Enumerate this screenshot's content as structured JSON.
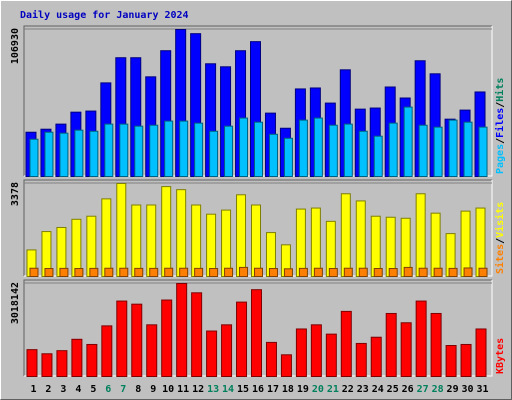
{
  "title": "Daily usage for January 2024",
  "title_color": "#0000c0",
  "categories": [
    1,
    2,
    3,
    4,
    5,
    6,
    7,
    8,
    9,
    10,
    11,
    12,
    13,
    14,
    15,
    16,
    17,
    18,
    19,
    20,
    21,
    22,
    23,
    24,
    25,
    26,
    27,
    28,
    29,
    30,
    31
  ],
  "category_colors": [
    "#000000",
    "#000000",
    "#000000",
    "#000000",
    "#000000",
    "#00805c",
    "#00805c",
    "#000000",
    "#000000",
    "#000000",
    "#000000",
    "#000000",
    "#00805c",
    "#00805c",
    "#000000",
    "#000000",
    "#000000",
    "#000000",
    "#000000",
    "#00805c",
    "#00805c",
    "#000000",
    "#000000",
    "#000000",
    "#000000",
    "#000000",
    "#00805c",
    "#00805c",
    "#000000",
    "#000000",
    "#000000"
  ],
  "chart_data": [
    {
      "type": "bar",
      "ylim": [
        0,
        106930
      ],
      "yticks": [
        106930
      ],
      "legend_separator": "/",
      "series": [
        {
          "name": "Pages",
          "color": "#00c0ff",
          "values": [
            27100,
            32200,
            31500,
            33700,
            32900,
            38100,
            38100,
            36600,
            37300,
            40300,
            40300,
            38800,
            32900,
            36600,
            42500,
            39500,
            30700,
            27800,
            41000,
            42500,
            37300,
            38100,
            32900,
            29300,
            38800,
            50500,
            37300,
            35900,
            41000,
            39500,
            35900
          ]
        },
        {
          "name": "Files",
          "color": "#0000ff",
          "values": [
            32200,
            34400,
            38100,
            46800,
            47600,
            68100,
            86400,
            86400,
            72500,
            91500,
            106930,
            103900,
            82000,
            79800,
            91500,
            98100,
            46100,
            35100,
            63700,
            64400,
            53400,
            77600,
            49000,
            49800,
            65100,
            57100,
            84200,
            74700,
            41700,
            48300,
            61500
          ]
        },
        {
          "name": "Hits",
          "color": "#00805c",
          "values": [
            null,
            null,
            null,
            null,
            null,
            null,
            null,
            null,
            null,
            null,
            null,
            null,
            null,
            null,
            null,
            null,
            null,
            null,
            null,
            null,
            null,
            null,
            null,
            null,
            null,
            null,
            null,
            null,
            null,
            null,
            null
          ]
        }
      ]
    },
    {
      "type": "bar",
      "ylim": [
        0,
        3378
      ],
      "yticks": [
        3378
      ],
      "legend_separator": "/",
      "series": [
        {
          "name": "Sites",
          "color": "#ff8000",
          "values": [
            300,
            290,
            295,
            290,
            295,
            300,
            300,
            295,
            295,
            300,
            300,
            295,
            290,
            300,
            330,
            300,
            290,
            280,
            295,
            300,
            290,
            300,
            300,
            290,
            290,
            330,
            300,
            300,
            295,
            310,
            300
          ]
        },
        {
          "name": "Visits",
          "color": "#ffff00",
          "values": [
            965,
            1632,
            1781,
            2078,
            2189,
            2820,
            3378,
            2597,
            2597,
            3265,
            3154,
            2597,
            2263,
            2412,
            2968,
            2597,
            1595,
            1150,
            2449,
            2486,
            2003,
            3005,
            2745,
            2189,
            2152,
            2115,
            3005,
            2300,
            1558,
            2374,
            2486
          ]
        }
      ]
    },
    {
      "type": "bar",
      "ylim": [
        0,
        3018142
      ],
      "yticks": [
        3018142
      ],
      "legend_separator": "/",
      "series": [
        {
          "name": "KBytes",
          "color": "#ff0000",
          "values": [
            871900,
            737800,
            838400,
            1207300,
            1039600,
            1643200,
            2448100,
            2347500,
            1676800,
            2481600,
            3018142,
            2716300,
            1475500,
            1676800,
            2414500,
            2816900,
            1106700,
            704200,
            1542600,
            1676800,
            1374900,
            2112700,
            1073100,
            1274300,
            2045600,
            1743800,
            2448100,
            2045600,
            1006100,
            1039600,
            1542600
          ]
        }
      ]
    }
  ]
}
